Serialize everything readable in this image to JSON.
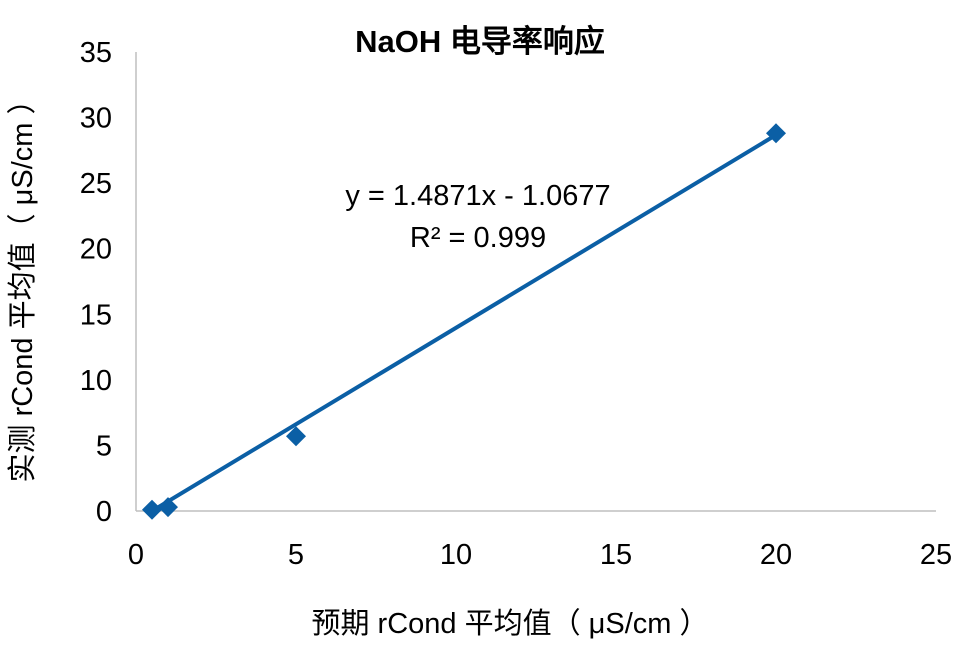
{
  "chart_data": {
    "type": "scatter",
    "title": "NaOH 电导率响应",
    "xlabel": "预期 rCond 平均值（ μS/cm ）",
    "ylabel": "实测 rCond 平均值（ μS/cm ）",
    "xlim": [
      0,
      25
    ],
    "ylim": [
      0,
      35
    ],
    "x_ticks": [
      "0",
      "5",
      "10",
      "15",
      "20",
      "25"
    ],
    "y_ticks": [
      "0",
      "5",
      "10",
      "15",
      "20",
      "25",
      "30",
      "35"
    ],
    "grid": false,
    "legend": "none",
    "series": [
      {
        "color": "#0b5fa5",
        "marker": "diamond",
        "points": [
          {
            "x": 0.5,
            "y": 0.1
          },
          {
            "x": 1.0,
            "y": 0.3
          },
          {
            "x": 5.0,
            "y": 5.7
          },
          {
            "x": 20.0,
            "y": 28.8
          }
        ]
      }
    ],
    "trendline": {
      "slope": 1.4871,
      "intercept": -1.0677,
      "color": "#0b5fa5",
      "equation": "y = 1.4871x - 1.0677",
      "r_squared": "R² = 0.999"
    }
  }
}
